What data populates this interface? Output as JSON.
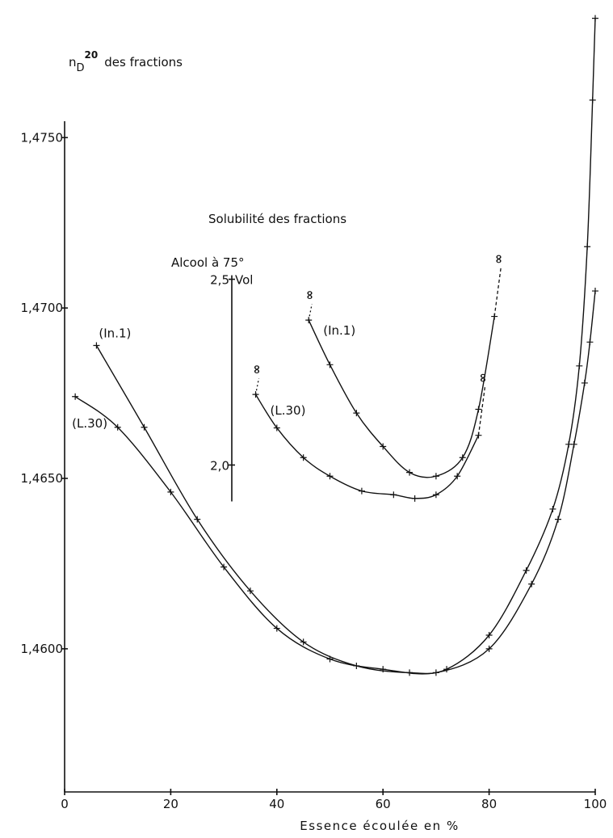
{
  "chart_data": {
    "type": "line",
    "y_label": {
      "base": "n",
      "sub": "D",
      "sup": "20",
      "text": "des fractions"
    },
    "x_label": "Essence écoulée en %",
    "inset_title": "Solubilité des fractions",
    "y2_label": "Alcool à 75°",
    "y2_unit": "Vol",
    "infinity_symbol": "∞",
    "xlim": [
      0,
      100
    ],
    "xticks": [
      0,
      20,
      40,
      60,
      80,
      100
    ],
    "ylim": [
      1.4558,
      1.4788
    ],
    "yticks": [
      {
        "value": 1.46,
        "label": "1,4600"
      },
      {
        "value": 1.465,
        "label": "1,4650"
      },
      {
        "value": 1.47,
        "label": "1,4700"
      },
      {
        "value": 1.475,
        "label": "1,4750"
      }
    ],
    "y2lim": [
      1.12,
      3.23
    ],
    "y2ticks": [
      {
        "value": 2.0,
        "label": "2,0"
      },
      {
        "value": 2.5,
        "label": "2,5"
      }
    ],
    "series": [
      {
        "name": "(In.1)",
        "color": "#111111",
        "x": [
          6,
          15,
          25,
          35,
          45,
          55,
          65,
          72,
          80,
          87,
          92,
          95,
          97,
          98.5,
          99.5,
          100
        ],
        "values": [
          1.4689,
          1.4665,
          1.4638,
          1.4617,
          1.4602,
          1.4595,
          1.4593,
          1.4594,
          1.4604,
          1.4623,
          1.4641,
          1.466,
          1.4683,
          1.4718,
          1.4761,
          1.4785
        ]
      },
      {
        "name": "(L.30)",
        "color": "#111111",
        "x": [
          2,
          10,
          20,
          30,
          40,
          50,
          60,
          70,
          80,
          88,
          93,
          96,
          98,
          99,
          100
        ],
        "values": [
          1.4674,
          1.4665,
          1.4646,
          1.4624,
          1.4606,
          1.4597,
          1.4594,
          1.4593,
          1.46,
          1.4619,
          1.4638,
          1.466,
          1.4678,
          1.469,
          1.4705
        ]
      },
      {
        "name": "(In.1)",
        "color": "#111111",
        "axis": "y2",
        "x": [
          46,
          50,
          55,
          60,
          65,
          70,
          75,
          78,
          81
        ],
        "values": [
          2.39,
          2.27,
          2.14,
          2.05,
          1.98,
          1.97,
          2.02,
          2.15,
          2.4
        ]
      },
      {
        "name": "(L.30)",
        "color": "#111111",
        "axis": "y2",
        "x": [
          36,
          40,
          45,
          50,
          56,
          62,
          66,
          70,
          74,
          78
        ],
        "values": [
          2.19,
          2.1,
          2.02,
          1.97,
          1.93,
          1.92,
          1.91,
          1.92,
          1.97,
          2.08
        ]
      }
    ]
  }
}
